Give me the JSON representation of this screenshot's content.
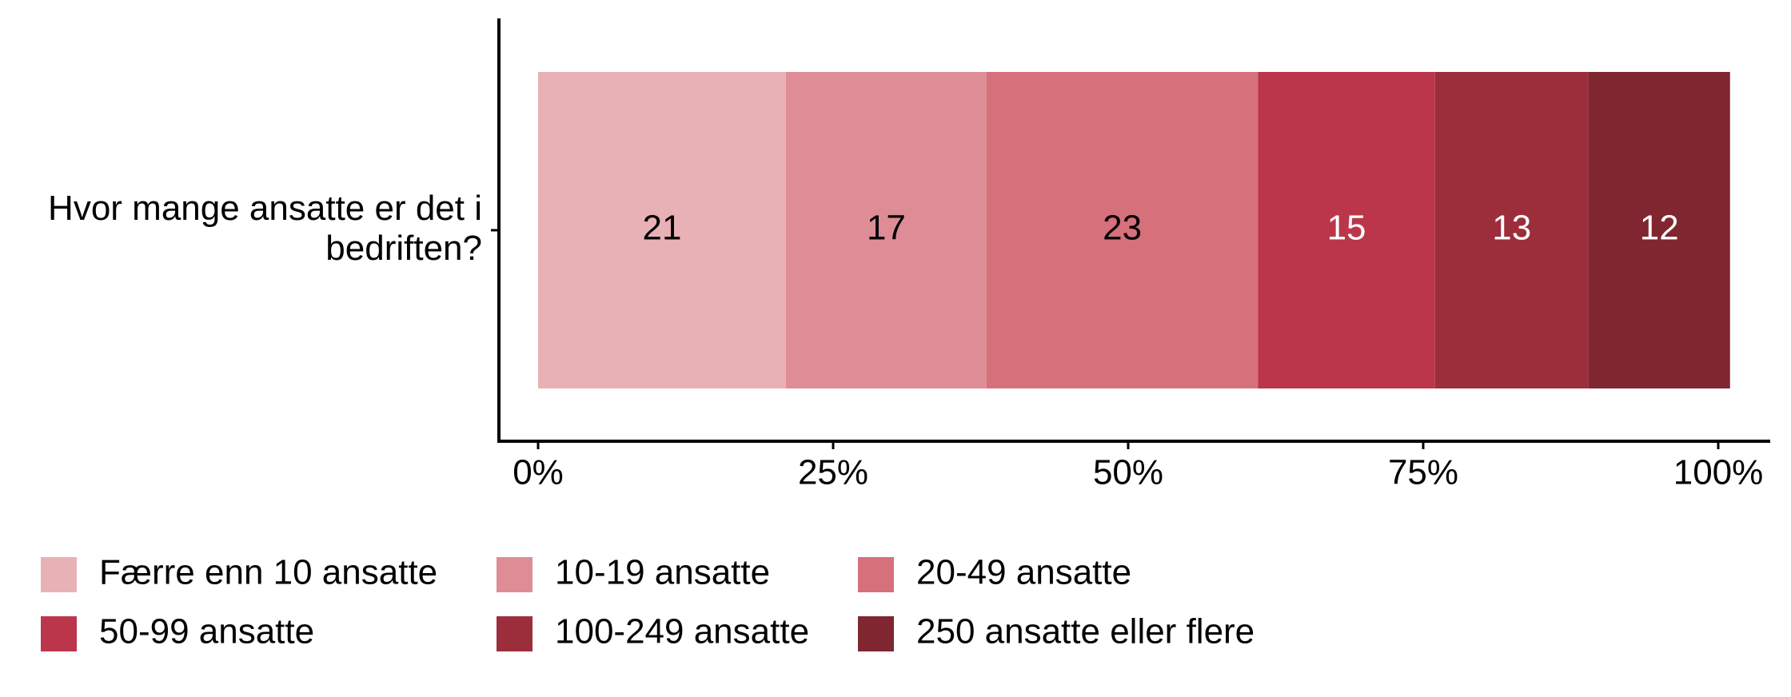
{
  "chart_data": {
    "type": "stacked_barh",
    "categories": [
      "Hvor mange ansatte er det i bedriften?"
    ],
    "series": [
      {
        "name": "Færre enn 10 ansatte",
        "color": "#e8b1b6",
        "values": [
          21
        ]
      },
      {
        "name": "10-19 ansatte",
        "color": "#de8d96",
        "values": [
          17
        ]
      },
      {
        "name": "20-49 ansatte",
        "color": "#d6707b",
        "values": [
          23
        ]
      },
      {
        "name": "50-99 ansatte",
        "color": "#bb364a",
        "values": [
          15
        ]
      },
      {
        "name": "100-249 ansatte",
        "color": "#9c2e3c",
        "values": [
          13
        ]
      },
      {
        "name": "250 ansatte eller flere",
        "color": "#7f2630",
        "values": [
          12
        ]
      }
    ],
    "xlim": [
      0,
      100
    ],
    "xticks": [
      {
        "value": 0,
        "label": "0%"
      },
      {
        "value": 25,
        "label": "25%"
      },
      {
        "value": 50,
        "label": "50%"
      },
      {
        "value": 75,
        "label": "75%"
      },
      {
        "value": 100,
        "label": "100%"
      }
    ],
    "legend": "bottom"
  }
}
